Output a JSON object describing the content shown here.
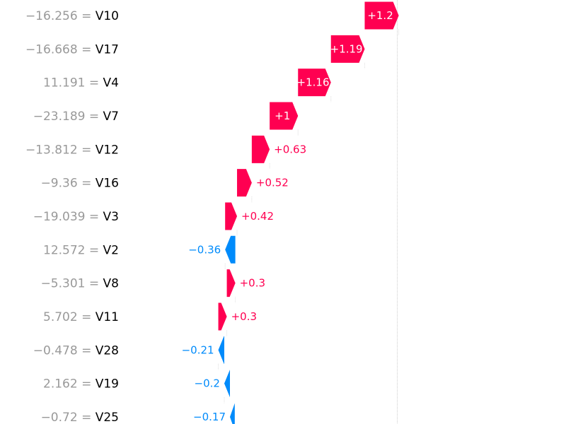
{
  "chart_data": {
    "type": "waterfall",
    "title": "",
    "xlabel": "",
    "ylabel": "",
    "positive_color": "#ff0051",
    "negative_color": "#008bfb",
    "reference_line_value": 0.95,
    "rows": [
      {
        "feature": "V10",
        "value_text": "−16.256",
        "contribution": 1.2,
        "label": "+1.2",
        "start": -0.2
      },
      {
        "feature": "V17",
        "value_text": "−16.668",
        "contribution": 1.19,
        "label": "+1.19",
        "start": -1.39
      },
      {
        "feature": "V4",
        "value_text": "11.191",
        "contribution": 1.16,
        "label": "+1.16",
        "start": -2.55
      },
      {
        "feature": "V7",
        "value_text": "−23.189",
        "contribution": 1.0,
        "label": "+1",
        "start": -3.55
      },
      {
        "feature": "V12",
        "value_text": "−13.812",
        "contribution": 0.63,
        "label": "+0.63",
        "start": -4.18
      },
      {
        "feature": "V16",
        "value_text": "−9.36",
        "contribution": 0.52,
        "label": "+0.52",
        "start": -4.7
      },
      {
        "feature": "V3",
        "value_text": "−19.039",
        "contribution": 0.42,
        "label": "+0.42",
        "start": -5.12
      },
      {
        "feature": "V2",
        "value_text": "12.572",
        "contribution": -0.36,
        "label": "−0.36",
        "start": -4.76
      },
      {
        "feature": "V8",
        "value_text": "−5.301",
        "contribution": 0.3,
        "label": "+0.3",
        "start": -5.06
      },
      {
        "feature": "V11",
        "value_text": "5.702",
        "contribution": 0.3,
        "label": "+0.3",
        "start": -5.36
      },
      {
        "feature": "V28",
        "value_text": "−0.478",
        "contribution": -0.21,
        "label": "−0.21",
        "start": -5.15
      },
      {
        "feature": "V19",
        "value_text": "2.162",
        "contribution": -0.2,
        "label": "−0.2",
        "start": -4.95
      },
      {
        "feature": "V25",
        "value_text": "−0.72",
        "contribution": -0.17,
        "label": "−0.17",
        "start": -4.78
      }
    ]
  }
}
